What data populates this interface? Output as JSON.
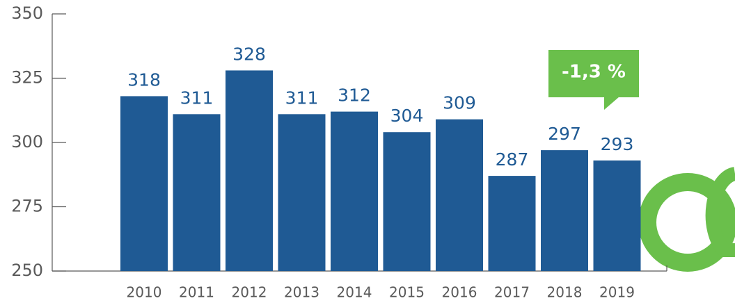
{
  "chart_data": {
    "type": "bar",
    "categories": [
      "2010",
      "2011",
      "2012",
      "2013",
      "2014",
      "2015",
      "2016",
      "2017",
      "2018",
      "2019"
    ],
    "values": [
      318,
      311,
      328,
      311,
      312,
      304,
      309,
      287,
      297,
      293
    ],
    "color": "#1f5a94",
    "ylim": [
      250,
      350
    ],
    "yticks": [
      250,
      275,
      300,
      325,
      350
    ],
    "annotation": "-1,3 %",
    "annotation_color": "#6abf4b"
  }
}
